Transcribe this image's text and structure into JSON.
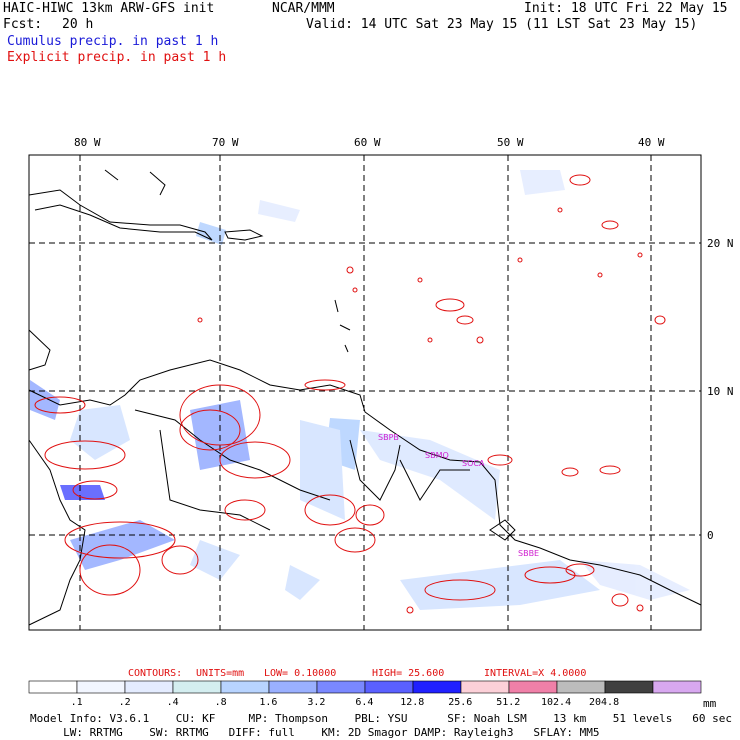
{
  "header": {
    "model_title": "HAIC-HIWC 13km ARW-GFS init",
    "org": "NCAR/MMM",
    "init": "Init: 18 UTC Fri 22 May 15",
    "fcst_label": "Fcst:",
    "fcst_value": "20 h",
    "valid": "Valid: 14 UTC Sat 23 May 15 (11 LST Sat 23 May 15)",
    "legend_cumulus": "Cumulus precip. in past 1 h",
    "legend_explicit": "Explicit precip. in past 1 h"
  },
  "map": {
    "lon_labels": [
      "80 W",
      "70 W",
      "60 W",
      "50 W",
      "40 W"
    ],
    "lat_labels": [
      "20 N",
      "10 N",
      "0"
    ],
    "station_labels": [
      "SBPB",
      "SBMQ",
      "SOCA",
      "SBBE"
    ]
  },
  "contours": {
    "label": "CONTOURS:",
    "units": "UNITS=mm",
    "low": "LOW= 0.10000",
    "high": "HIGH= 25.600",
    "interval": "INTERVAL=X 4.0000"
  },
  "colorbar": {
    "unit": "mm",
    "bins": [
      {
        "color": "#ffffff",
        "label": ".1"
      },
      {
        "color": "#f2f6ff",
        "label": ".2"
      },
      {
        "color": "#e4ecff",
        "label": ".4"
      },
      {
        "color": "#d4eef0",
        "label": ".8"
      },
      {
        "color": "#b8d4ff",
        "label": "1.6"
      },
      {
        "color": "#9ab0ff",
        "label": "3.2"
      },
      {
        "color": "#7a88ff",
        "label": "6.4"
      },
      {
        "color": "#5a60ff",
        "label": "12.8"
      },
      {
        "color": "#2020ff",
        "label": "25.6"
      },
      {
        "color": "#fcd0d8",
        "label": "51.2"
      },
      {
        "color": "#f080a8",
        "label": "102.4"
      },
      {
        "color": "#bcbcbc",
        "label": "204.8"
      },
      {
        "color": "#404040",
        "label": ""
      },
      {
        "color": "#d8a8f0",
        "label": ""
      }
    ]
  },
  "footer": {
    "line1": "Model Info: V3.6.1    CU: KF     MP: Thompson    PBL: YSU      SF: Noah LSM    13 km    51 levels   60 sec",
    "line2": "     LW: RRTMG    SW: RRTMG   DIFF: full    KM: 2D Smagor DAMP: Rayleigh3   SFLAY: MM5"
  },
  "colors": {
    "cumulus": "#1a1ad8",
    "explicit": "#e01010",
    "station": "#d020d0"
  }
}
